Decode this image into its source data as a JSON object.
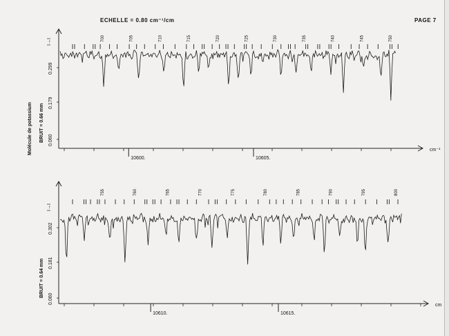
{
  "header": {
    "page_label": "PAGE 7",
    "scale_label": "ECHELLE = 0.80 cm⁻¹/cm"
  },
  "chart_data": [
    {
      "type": "line",
      "title": "",
      "ylabel": "Molécule de potassium",
      "noise_label": "BRUIT = 0.66 mm",
      "level_label": "I→I",
      "y_ticks": [
        "0.060",
        "0.179",
        "0.299"
      ],
      "x_unit": "cm⁻¹",
      "x_ticks": [
        {
          "value": 10600,
          "label": "10600."
        },
        {
          "value": 10605,
          "label": "10605."
        }
      ],
      "xlim": [
        10597.2,
        10611.5
      ],
      "line_marks": [
        "700",
        "705",
        "710",
        "715",
        "720",
        "725",
        "730",
        "735",
        "740",
        "745",
        "750"
      ],
      "absorption_dips": [
        {
          "x": 10599.0,
          "depth": 0.55
        },
        {
          "x": 10599.6,
          "depth": 0.3
        },
        {
          "x": 10600.4,
          "depth": 0.35
        },
        {
          "x": 10601.4,
          "depth": 0.3
        },
        {
          "x": 10602.2,
          "depth": 0.6
        },
        {
          "x": 10602.8,
          "depth": 0.35
        },
        {
          "x": 10603.2,
          "depth": 0.3
        },
        {
          "x": 10604.0,
          "depth": 0.55
        },
        {
          "x": 10604.4,
          "depth": 0.45
        },
        {
          "x": 10604.9,
          "depth": 0.35
        },
        {
          "x": 10606.1,
          "depth": 0.35
        },
        {
          "x": 10606.7,
          "depth": 0.3
        },
        {
          "x": 10607.3,
          "depth": 0.3
        },
        {
          "x": 10608.1,
          "depth": 0.35
        },
        {
          "x": 10608.6,
          "depth": 0.65
        },
        {
          "x": 10609.4,
          "depth": 0.3
        },
        {
          "x": 10610.1,
          "depth": 0.4
        },
        {
          "x": 10610.5,
          "depth": 0.7
        }
      ]
    },
    {
      "type": "line",
      "title": "",
      "ylabel": "",
      "noise_label": "BRUIT = 0.64 mm",
      "level_label": "I→I",
      "y_ticks": [
        "0.060",
        "0.181",
        "0.302"
      ],
      "x_unit": "cm",
      "x_ticks": [
        {
          "value": 10610,
          "label": "10610."
        },
        {
          "value": 10615,
          "label": "10615."
        }
      ],
      "xlim": [
        10606.4,
        10620.6
      ],
      "line_marks": [
        "755",
        "760",
        "765",
        "770",
        "775",
        "780",
        "785",
        "790",
        "795",
        "800"
      ],
      "absorption_dips": [
        {
          "x": 10606.7,
          "depth": 0.8
        },
        {
          "x": 10607.4,
          "depth": 0.4
        },
        {
          "x": 10608.4,
          "depth": 0.35
        },
        {
          "x": 10609.0,
          "depth": 0.7
        },
        {
          "x": 10609.9,
          "depth": 0.4
        },
        {
          "x": 10610.6,
          "depth": 0.35
        },
        {
          "x": 10611.1,
          "depth": 0.5
        },
        {
          "x": 10611.8,
          "depth": 0.4
        },
        {
          "x": 10612.4,
          "depth": 0.45
        },
        {
          "x": 10613.0,
          "depth": 0.35
        },
        {
          "x": 10613.8,
          "depth": 0.75
        },
        {
          "x": 10614.4,
          "depth": 0.4
        },
        {
          "x": 10615.1,
          "depth": 0.35
        },
        {
          "x": 10615.6,
          "depth": 0.3
        },
        {
          "x": 10616.4,
          "depth": 0.4
        },
        {
          "x": 10616.8,
          "depth": 0.6
        },
        {
          "x": 10617.4,
          "depth": 0.35
        },
        {
          "x": 10618.1,
          "depth": 0.5
        },
        {
          "x": 10618.4,
          "depth": 0.65
        },
        {
          "x": 10619.3,
          "depth": 0.45
        },
        {
          "x": 10620.0,
          "depth": 0.35
        }
      ]
    }
  ]
}
